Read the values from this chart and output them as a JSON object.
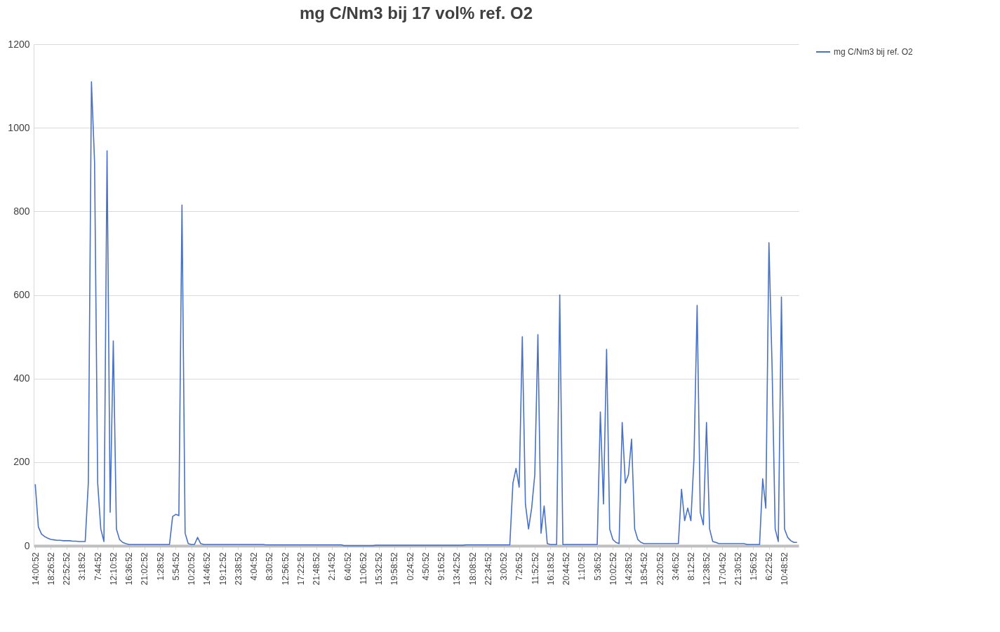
{
  "chart_data": {
    "type": "line",
    "title": "mg C/Nm3 bij 17 vol% ref. O2",
    "categories": [
      "14:00:52",
      null,
      null,
      null,
      null,
      "18:26:52",
      null,
      null,
      null,
      null,
      "22:52:52",
      null,
      null,
      null,
      null,
      "3:18:52",
      null,
      null,
      null,
      null,
      "7:44:52",
      null,
      null,
      null,
      null,
      "12:10:52",
      null,
      null,
      null,
      null,
      "16:36:52",
      null,
      null,
      null,
      null,
      "21:02:52",
      null,
      null,
      null,
      null,
      "1:28:52",
      null,
      null,
      null,
      null,
      "5:54:52",
      null,
      null,
      null,
      null,
      "10:20:52",
      null,
      null,
      null,
      null,
      "14:46:52",
      null,
      null,
      null,
      null,
      "19:12:52",
      null,
      null,
      null,
      null,
      "23:38:52",
      null,
      null,
      null,
      null,
      "4:04:52",
      null,
      null,
      null,
      null,
      "8:30:52",
      null,
      null,
      null,
      null,
      "12:56:52",
      null,
      null,
      null,
      null,
      "17:22:52",
      null,
      null,
      null,
      null,
      "21:48:52",
      null,
      null,
      null,
      null,
      "2:14:52",
      null,
      null,
      null,
      null,
      "6:40:52",
      null,
      null,
      null,
      null,
      "11:06:52",
      null,
      null,
      null,
      null,
      "15:32:52",
      null,
      null,
      null,
      null,
      "19:58:52",
      null,
      null,
      null,
      null,
      "0:24:52",
      null,
      null,
      null,
      null,
      "4:50:52",
      null,
      null,
      null,
      null,
      "9:16:52",
      null,
      null,
      null,
      null,
      "13:42:52",
      null,
      null,
      null,
      null,
      "18:08:52",
      null,
      null,
      null,
      null,
      "22:34:52",
      null,
      null,
      null,
      null,
      "3:00:52",
      null,
      null,
      null,
      null,
      "7:26:52",
      null,
      null,
      null,
      null,
      "11:52:52",
      null,
      null,
      null,
      null,
      "16:18:52",
      null,
      null,
      null,
      null,
      "20:44:52",
      null,
      null,
      null,
      null,
      "1:10:52",
      null,
      null,
      null,
      null,
      "5:36:52",
      null,
      null,
      null,
      null,
      "10:02:52",
      null,
      null,
      null,
      null,
      "14:28:52",
      null,
      null,
      null,
      null,
      "18:54:52",
      null,
      null,
      null,
      null,
      "23:20:52",
      null,
      null,
      null,
      null,
      "3:46:52",
      null,
      null,
      null,
      null,
      "8:12:52",
      null,
      null,
      null,
      null,
      "12:38:52",
      null,
      null,
      null,
      null,
      "17:04:52",
      null,
      null,
      null,
      null,
      "21:30:52",
      null,
      null,
      null,
      null,
      "1:56:52",
      null,
      null,
      null,
      null,
      "6:22:52",
      null,
      null,
      null,
      null,
      "10:48:52",
      null,
      null,
      null,
      null
    ],
    "series": [
      {
        "name": "mg C/Nm3 bij ref. O2",
        "color": "#4a72c4",
        "values": [
          147,
          45,
          28,
          22,
          18,
          15,
          14,
          13,
          13,
          12,
          12,
          12,
          11,
          11,
          10,
          10,
          10,
          150,
          1110,
          918,
          150,
          40,
          10,
          945,
          80,
          490,
          40,
          15,
          8,
          5,
          3,
          3,
          3,
          3,
          3,
          3,
          3,
          3,
          3,
          3,
          3,
          3,
          3,
          3,
          70,
          75,
          72,
          815,
          30,
          5,
          3,
          3,
          20,
          5,
          3,
          3,
          3,
          3,
          3,
          3,
          3,
          3,
          3,
          3,
          3,
          3,
          3,
          3,
          3,
          3,
          3,
          3,
          3,
          3,
          2,
          2,
          2,
          2,
          2,
          2,
          2,
          2,
          2,
          2,
          2,
          2,
          2,
          2,
          2,
          2,
          2,
          2,
          2,
          2,
          2,
          2,
          2,
          2,
          2,
          0,
          0,
          0,
          0,
          0,
          0,
          0,
          0,
          0,
          0,
          1,
          1,
          1,
          1,
          1,
          1,
          1,
          1,
          1,
          1,
          1,
          1,
          1,
          1,
          1,
          1,
          1,
          1,
          1,
          1,
          1,
          1,
          1,
          1,
          1,
          1,
          1,
          1,
          1,
          2,
          2,
          2,
          2,
          2,
          2,
          2,
          2,
          2,
          2,
          2,
          2,
          2,
          2,
          2,
          150,
          185,
          140,
          500,
          100,
          40,
          90,
          170,
          505,
          30,
          95,
          5,
          3,
          3,
          3,
          600,
          3,
          3,
          3,
          3,
          3,
          3,
          3,
          3,
          3,
          3,
          3,
          3,
          320,
          100,
          470,
          40,
          15,
          8,
          5,
          295,
          150,
          170,
          255,
          40,
          15,
          8,
          5,
          5,
          5,
          5,
          5,
          5,
          5,
          5,
          5,
          5,
          5,
          5,
          135,
          60,
          90,
          60,
          210,
          575,
          80,
          50,
          295,
          40,
          10,
          8,
          5,
          5,
          5,
          5,
          5,
          5,
          5,
          5,
          5,
          3,
          3,
          3,
          3,
          3,
          160,
          90,
          725,
          430,
          40,
          10,
          595,
          40,
          20,
          12,
          8,
          8
        ]
      }
    ],
    "ylim": [
      0,
      1200
    ],
    "yticks": [
      0,
      200,
      400,
      600,
      800,
      1000,
      1200
    ],
    "grid": "y",
    "legend": "right",
    "marker": "none",
    "line_style": "solid"
  }
}
